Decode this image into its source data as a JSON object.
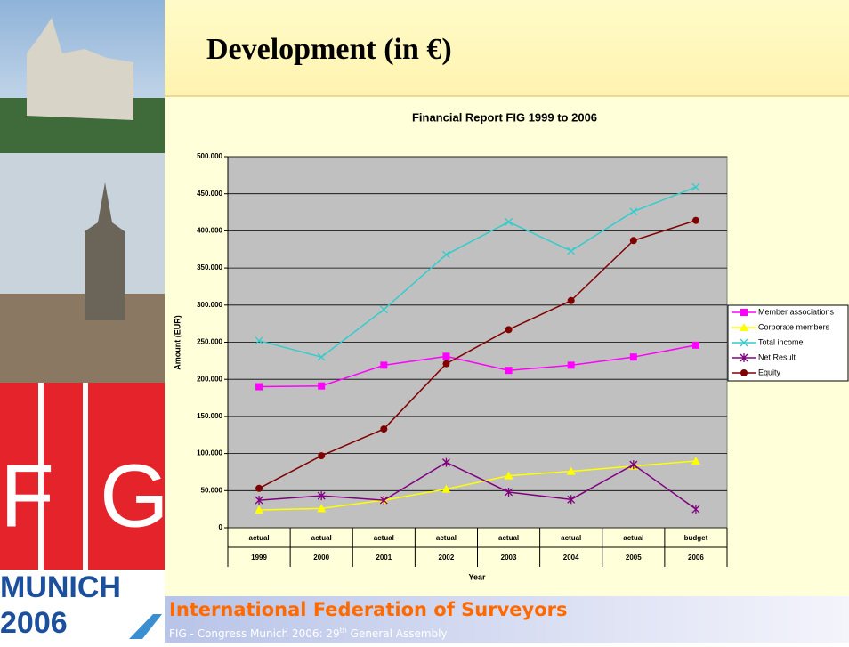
{
  "slide": {
    "title": "Development (in €)",
    "footer_title": "International Federation of Surveyors",
    "footer_line": [
      "FIG - Congress Munich 2006:  29",
      "th",
      " General Assembly"
    ]
  },
  "logo": {
    "left": "F",
    "right": "G",
    "city": "MUNICH",
    "year": "2006"
  },
  "chart_data": {
    "type": "line",
    "title": "Financial Report FIG 1999 to 2006",
    "x_label": "Year",
    "y_label": "Amount (EUR)",
    "categories": [
      [
        "actual",
        "1999"
      ],
      [
        "actual",
        "2000"
      ],
      [
        "actual",
        "2001"
      ],
      [
        "actual",
        "2002"
      ],
      [
        "actual",
        "2003"
      ],
      [
        "actual",
        "2004"
      ],
      [
        "actual",
        "2005"
      ],
      [
        "budget",
        "2006"
      ]
    ],
    "ylim": [
      0,
      500000
    ],
    "yticks": [
      0,
      {
        "value": 50000,
        "label": "50.000"
      },
      {
        "value": 100000,
        "label": "100.000"
      },
      {
        "value": 150000,
        "label": "150.000"
      },
      {
        "value": 200000,
        "label": "200.000"
      },
      {
        "value": 250000,
        "label": "250.000"
      },
      {
        "value": 300000,
        "label": "300.000"
      },
      {
        "value": 350000,
        "label": "350.000"
      },
      {
        "value": 400000,
        "label": "400.000"
      },
      {
        "value": 450000,
        "label": "450.000"
      },
      {
        "value": 500000,
        "label": "500.000"
      }
    ],
    "grid": true,
    "legend": "right",
    "series": [
      {
        "name": "Member associations",
        "color": "#ff00ff",
        "marker": "square",
        "values": [
          190000,
          191000,
          219000,
          231000,
          212000,
          219000,
          230000,
          246000
        ]
      },
      {
        "name": "Corporate members",
        "color": "#ffff00",
        "marker": "triangle",
        "values": [
          24000,
          26000,
          37000,
          52000,
          70000,
          76000,
          83000,
          90000
        ]
      },
      {
        "name": "Total income",
        "color": "#33cccc",
        "marker": "x",
        "values": [
          252000,
          230000,
          294000,
          368000,
          412000,
          373000,
          426000,
          459000
        ]
      },
      {
        "name": "Net Result",
        "color": "#800080",
        "marker": "star",
        "values": [
          37000,
          43000,
          37000,
          88000,
          48000,
          38000,
          85000,
          25000
        ]
      },
      {
        "name": "Equity",
        "color": "#800000",
        "marker": "circle",
        "values": [
          53000,
          97000,
          133000,
          221000,
          267000,
          306000,
          387000,
          414000
        ]
      }
    ]
  }
}
